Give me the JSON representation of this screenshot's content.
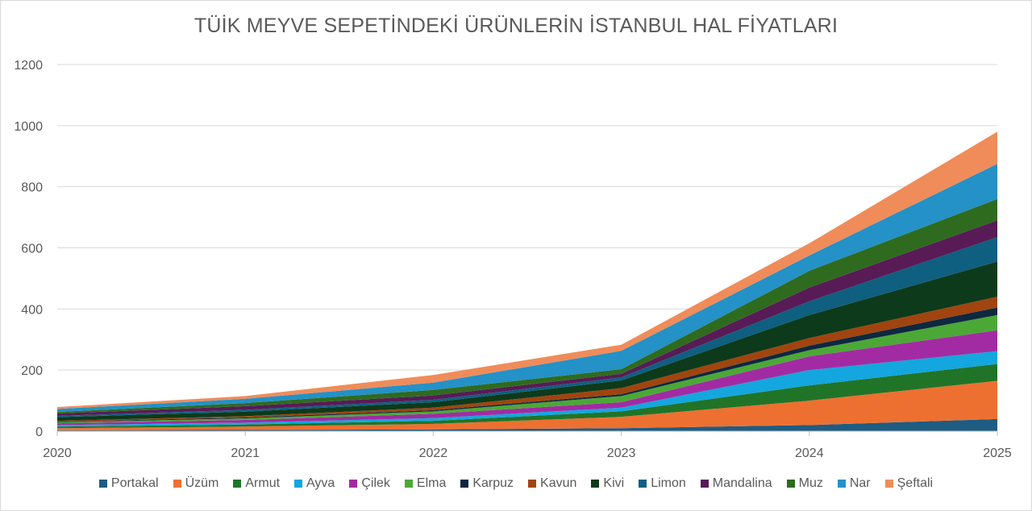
{
  "chart_data": {
    "type": "area",
    "stacked": true,
    "title": "TÜİK MEYVE SEPETİNDEKİ ÜRÜNLERİN İSTANBUL HAL FİYATLARI",
    "xlabel": "",
    "ylabel": "",
    "x": [
      "2020",
      "2021",
      "2022",
      "2023",
      "2024",
      "2025"
    ],
    "ylim": [
      0,
      1200
    ],
    "yticks": [
      "0",
      "200",
      "400",
      "600",
      "800",
      "1000",
      "1200"
    ],
    "grid": true,
    "legend_position": "bottom",
    "series": [
      {
        "name": "Portakal",
        "color": "#1f5c82",
        "values": [
          3,
          4,
          6,
          10,
          20,
          40
        ]
      },
      {
        "name": "Üzüm",
        "color": "#ed7031",
        "values": [
          7,
          11,
          18,
          37,
          80,
          125
        ]
      },
      {
        "name": "Armut",
        "color": "#207428",
        "values": [
          5,
          7,
          10,
          18,
          50,
          55
        ]
      },
      {
        "name": "Ayva",
        "color": "#14a6de",
        "values": [
          5,
          6,
          9,
          12,
          50,
          42
        ]
      },
      {
        "name": "Çilek",
        "color": "#a22ba3",
        "values": [
          6,
          9,
          14,
          18,
          45,
          68
        ]
      },
      {
        "name": "Elma",
        "color": "#4ba836",
        "values": [
          3,
          5,
          8,
          20,
          20,
          50
        ]
      },
      {
        "name": "Karpuz",
        "color": "#0e2841",
        "values": [
          2,
          3,
          4,
          6,
          15,
          25
        ]
      },
      {
        "name": "Kavun",
        "color": "#a1440f",
        "values": [
          3,
          4,
          8,
          20,
          25,
          35
        ]
      },
      {
        "name": "Kivi",
        "color": "#0d3a1a",
        "values": [
          12,
          15,
          18,
          25,
          75,
          115
        ]
      },
      {
        "name": "Limon",
        "color": "#0e5f80",
        "values": [
          4,
          6,
          8,
          10,
          45,
          80
        ]
      },
      {
        "name": "Mandalina",
        "color": "#581b56",
        "values": [
          8,
          12,
          14,
          12,
          45,
          55
        ]
      },
      {
        "name": "Muz",
        "color": "#2e6b1f",
        "values": [
          5,
          10,
          18,
          15,
          55,
          70
        ]
      },
      {
        "name": "Nar",
        "color": "#2491c7",
        "values": [
          10,
          14,
          24,
          60,
          50,
          115
        ]
      },
      {
        "name": "Şeftali",
        "color": "#ef8c5a",
        "values": [
          6,
          9,
          25,
          20,
          40,
          105
        ]
      }
    ]
  }
}
